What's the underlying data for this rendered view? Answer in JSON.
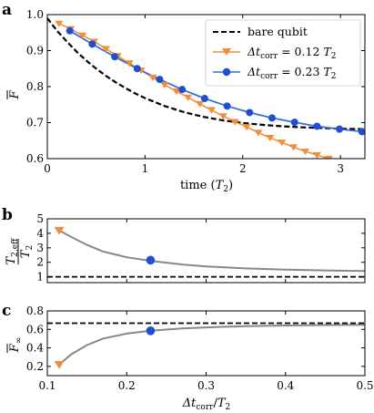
{
  "chart_data": [
    {
      "panel": "a",
      "type": "line",
      "xlabel": "time (T2)",
      "ylabel": "F̅",
      "xlim": [
        0,
        3.25
      ],
      "ylim": [
        0.6,
        1.0
      ],
      "xticks": [
        0,
        1,
        2,
        3
      ],
      "yticks": [
        0.6,
        0.7,
        0.8,
        0.9,
        1.0
      ],
      "legend_position": "top-right",
      "series": [
        {
          "name": "bare qubit",
          "style": "dashed",
          "color": "#000000",
          "x": [
            0,
            0.1,
            0.2,
            0.3,
            0.4,
            0.5,
            0.6,
            0.7,
            0.8,
            0.9,
            1.0,
            1.2,
            1.4,
            1.6,
            1.8,
            2.0,
            2.2,
            2.4,
            2.6,
            2.8,
            3.0,
            3.25
          ],
          "y": [
            0.99,
            0.955,
            0.925,
            0.897,
            0.872,
            0.85,
            0.83,
            0.812,
            0.796,
            0.781,
            0.768,
            0.746,
            0.729,
            0.716,
            0.706,
            0.699,
            0.694,
            0.69,
            0.687,
            0.685,
            0.683,
            0.682
          ]
        },
        {
          "name": "Δt_corr = 0.12 T2",
          "marker": "triangle-down",
          "color": "#f28e3b",
          "x": [
            0.12,
            0.24,
            0.36,
            0.48,
            0.6,
            0.72,
            0.84,
            0.96,
            1.08,
            1.2,
            1.32,
            1.44,
            1.56,
            1.68,
            1.8,
            1.92,
            2.04,
            2.16,
            2.28,
            2.4,
            2.52,
            2.64,
            2.76,
            2.88
          ],
          "y": [
            0.975,
            0.96,
            0.942,
            0.925,
            0.905,
            0.885,
            0.865,
            0.845,
            0.825,
            0.805,
            0.787,
            0.77,
            0.752,
            0.735,
            0.718,
            0.702,
            0.688,
            0.672,
            0.658,
            0.645,
            0.632,
            0.62,
            0.61,
            0.6
          ]
        },
        {
          "name": "Δt_corr = 0.23 T2",
          "marker": "circle",
          "color": "#1f4fd1",
          "x": [
            0.23,
            0.46,
            0.69,
            0.92,
            1.15,
            1.38,
            1.61,
            1.84,
            2.07,
            2.3,
            2.53,
            2.76,
            2.99,
            3.22
          ],
          "y": [
            0.955,
            0.918,
            0.883,
            0.85,
            0.82,
            0.792,
            0.767,
            0.746,
            0.728,
            0.713,
            0.701,
            0.69,
            0.682,
            0.675
          ]
        }
      ],
      "line_color": "#3a6fd8"
    },
    {
      "panel": "b",
      "type": "line",
      "xlabel": "",
      "ylabel": "T2,eff / T2",
      "xlim": [
        0.1,
        0.5
      ],
      "ylim": [
        0.6,
        5.0
      ],
      "yticks": [
        1,
        2,
        3,
        4,
        5
      ],
      "series": [
        {
          "name": "",
          "style": "solid",
          "color": "#888888",
          "x": [
            0.115,
            0.13,
            0.15,
            0.17,
            0.2,
            0.23,
            0.27,
            0.3,
            0.35,
            0.4,
            0.45,
            0.5
          ],
          "y": [
            4.2,
            3.75,
            3.2,
            2.75,
            2.35,
            2.1,
            1.85,
            1.72,
            1.58,
            1.5,
            1.44,
            1.4
          ]
        },
        {
          "name": "",
          "style": "dashed",
          "color": "#000000",
          "x": [
            0.1,
            0.5
          ],
          "y": [
            1.0,
            1.0
          ]
        }
      ],
      "markers": [
        {
          "x": 0.115,
          "y": 4.2,
          "marker": "triangle-down",
          "color": "#f28e3b"
        },
        {
          "x": 0.23,
          "y": 2.15,
          "marker": "circle",
          "color": "#1f4fd1"
        }
      ]
    },
    {
      "panel": "c",
      "type": "line",
      "xlabel": "Δt_corr / T2",
      "ylabel": "F̅∞",
      "xlim": [
        0.1,
        0.5
      ],
      "ylim": [
        0.1,
        0.8
      ],
      "xticks": [
        0.1,
        0.2,
        0.3,
        0.4,
        0.5
      ],
      "yticks": [
        0.2,
        0.4,
        0.6,
        0.8
      ],
      "series": [
        {
          "name": "",
          "style": "solid",
          "color": "#888888",
          "x": [
            0.115,
            0.13,
            0.15,
            0.17,
            0.2,
            0.23,
            0.27,
            0.3,
            0.35,
            0.4,
            0.45,
            0.5
          ],
          "y": [
            0.22,
            0.33,
            0.43,
            0.5,
            0.555,
            0.585,
            0.61,
            0.622,
            0.635,
            0.642,
            0.647,
            0.65
          ]
        },
        {
          "name": "",
          "style": "dashed",
          "color": "#000000",
          "x": [
            0.1,
            0.5
          ],
          "y": [
            0.667,
            0.667
          ]
        }
      ],
      "markers": [
        {
          "x": 0.115,
          "y": 0.22,
          "marker": "triangle-down",
          "color": "#f28e3b"
        },
        {
          "x": 0.23,
          "y": 0.585,
          "marker": "circle",
          "color": "#1f4fd1"
        }
      ]
    }
  ],
  "labels": {
    "panel_a": "a",
    "panel_b": "b",
    "panel_c": "c",
    "time_label": "time (",
    "time_T": "T",
    "time_sub": "2",
    "time_close": ")",
    "legend_bare": "bare qubit",
    "legend_delta": "Δt",
    "legend_corr": "corr",
    "legend_012": " = 0.12 ",
    "legend_023": " = 0.23 ",
    "legend_T": "T",
    "legend_T_sub": "2",
    "ylabel_a": "F",
    "ylabel_b_num": "T",
    "ylabel_b_num_sub": "2,eff",
    "ylabel_b_den": "T",
    "ylabel_b_den_sub": "2",
    "ylabel_c": "F",
    "ylabel_c_sub": "∞",
    "xlabel_c_delta": "Δt",
    "xlabel_c_corr": "corr",
    "xlabel_c_slash": "/",
    "xlabel_c_T": "T",
    "xlabel_c_sub": "2"
  },
  "ticks": {
    "a_x": [
      "0",
      "1",
      "2",
      "3"
    ],
    "a_y": [
      "0.6",
      "0.7",
      "0.8",
      "0.9",
      "1.0"
    ],
    "b_y": [
      "1",
      "2",
      "3",
      "4",
      "5"
    ],
    "c_x": [
      "0.1",
      "0.2",
      "0.3",
      "0.4",
      "0.5"
    ],
    "c_y": [
      "0.2",
      "0.4",
      "0.6",
      "0.8"
    ]
  }
}
